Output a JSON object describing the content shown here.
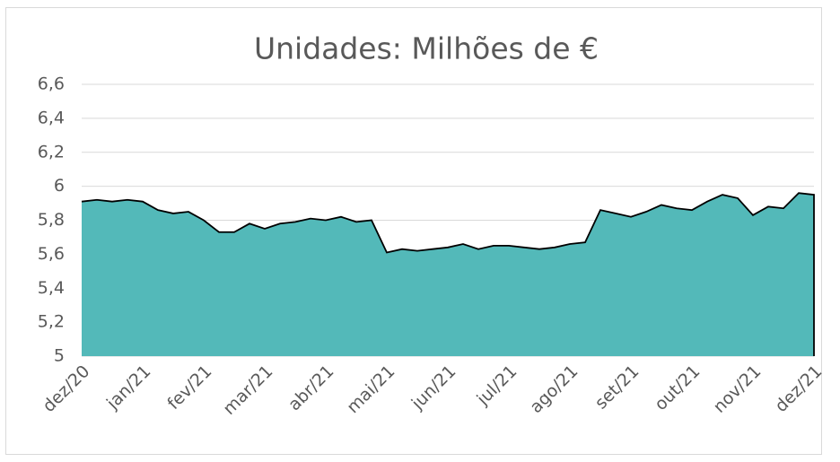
{
  "chart_data": {
    "type": "area",
    "title": "Unidades: Milhões de €",
    "categories": [
      "dez/20",
      null,
      null,
      null,
      "jan/21",
      null,
      null,
      null,
      "fev/21",
      null,
      null,
      null,
      "mar/21",
      null,
      null,
      null,
      "abr/21",
      null,
      null,
      null,
      "mai/21",
      null,
      null,
      null,
      "jun/21",
      null,
      null,
      null,
      "jul/21",
      null,
      null,
      null,
      "ago/21",
      null,
      null,
      null,
      "set/21",
      null,
      null,
      null,
      "out/21",
      null,
      null,
      null,
      "nov/21",
      null,
      null,
      null,
      "dez/21"
    ],
    "values": [
      5.91,
      5.92,
      5.91,
      5.92,
      5.91,
      5.86,
      5.84,
      5.85,
      5.8,
      5.73,
      5.73,
      5.78,
      5.75,
      5.78,
      5.79,
      5.81,
      5.8,
      5.82,
      5.79,
      5.8,
      5.61,
      5.63,
      5.62,
      5.63,
      5.64,
      5.66,
      5.63,
      5.65,
      5.65,
      5.64,
      5.63,
      5.64,
      5.66,
      5.67,
      5.86,
      5.84,
      5.82,
      5.85,
      5.89,
      5.87,
      5.86,
      5.91,
      5.95,
      5.93,
      5.83,
      5.88,
      5.87,
      5.96,
      5.95
    ],
    "color": "#53b9b9",
    "line_color": "#000000",
    "ylim": [
      5,
      6.6
    ],
    "yticks": [
      5,
      {
        "value": 5.2,
        "label": "5,2"
      },
      {
        "value": 5.4,
        "label": "5,4"
      },
      {
        "value": 5.6,
        "label": "5,6"
      },
      {
        "value": 5.8,
        "label": "5,8"
      },
      6,
      {
        "value": 6.2,
        "label": "6,2"
      },
      {
        "value": 6.4,
        "label": "6,4"
      },
      {
        "value": 6.6,
        "label": "6,6"
      }
    ],
    "grid": true
  }
}
